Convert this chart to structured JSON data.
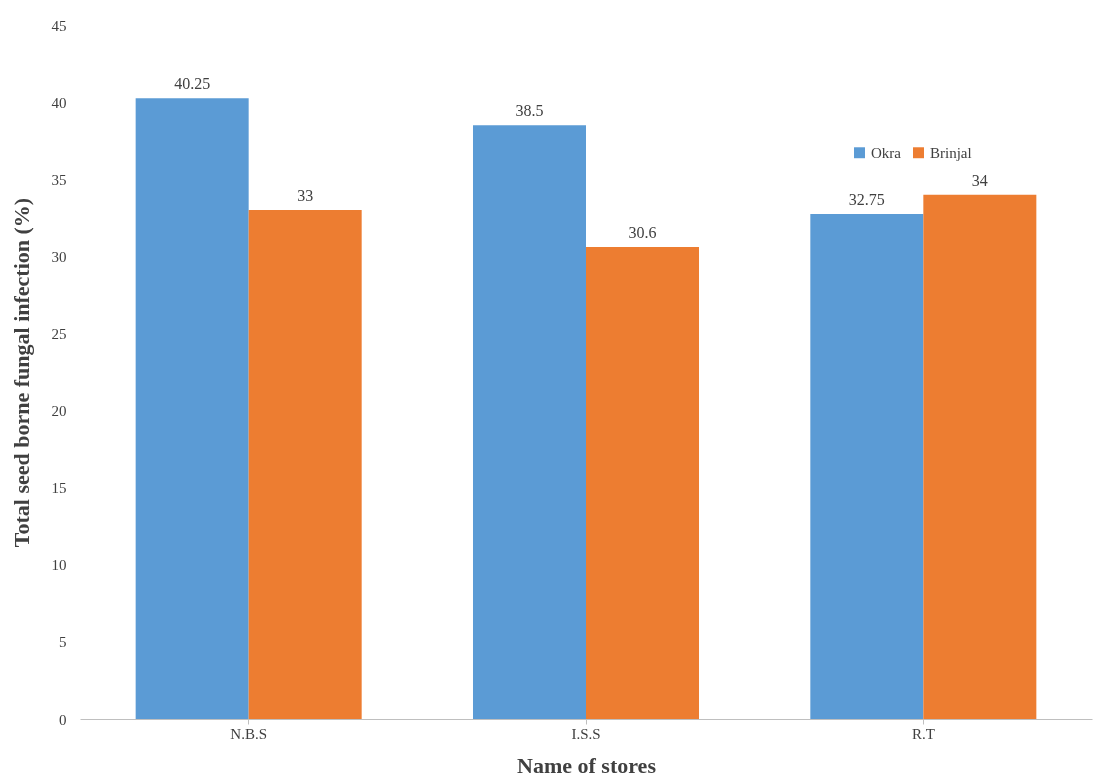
{
  "chart_data": {
    "type": "bar",
    "xlabel": "Name of stores",
    "ylabel": "Total seed borne fungal infection (%)",
    "categories": [
      "N.B.S",
      "I.S.S",
      "R.T"
    ],
    "series": [
      {
        "name": "Okra",
        "color": "#5b9bd5",
        "values": [
          40.25,
          38.5,
          32.75
        ]
      },
      {
        "name": "Brinjal",
        "color": "#ed7d31",
        "values": [
          33,
          30.6,
          34
        ]
      }
    ],
    "ylim": [
      0,
      45
    ],
    "yticks": [
      0,
      5,
      10,
      15,
      20,
      25,
      30,
      35,
      40,
      45
    ],
    "grid": false,
    "legend": "top right",
    "data_labels": true
  }
}
